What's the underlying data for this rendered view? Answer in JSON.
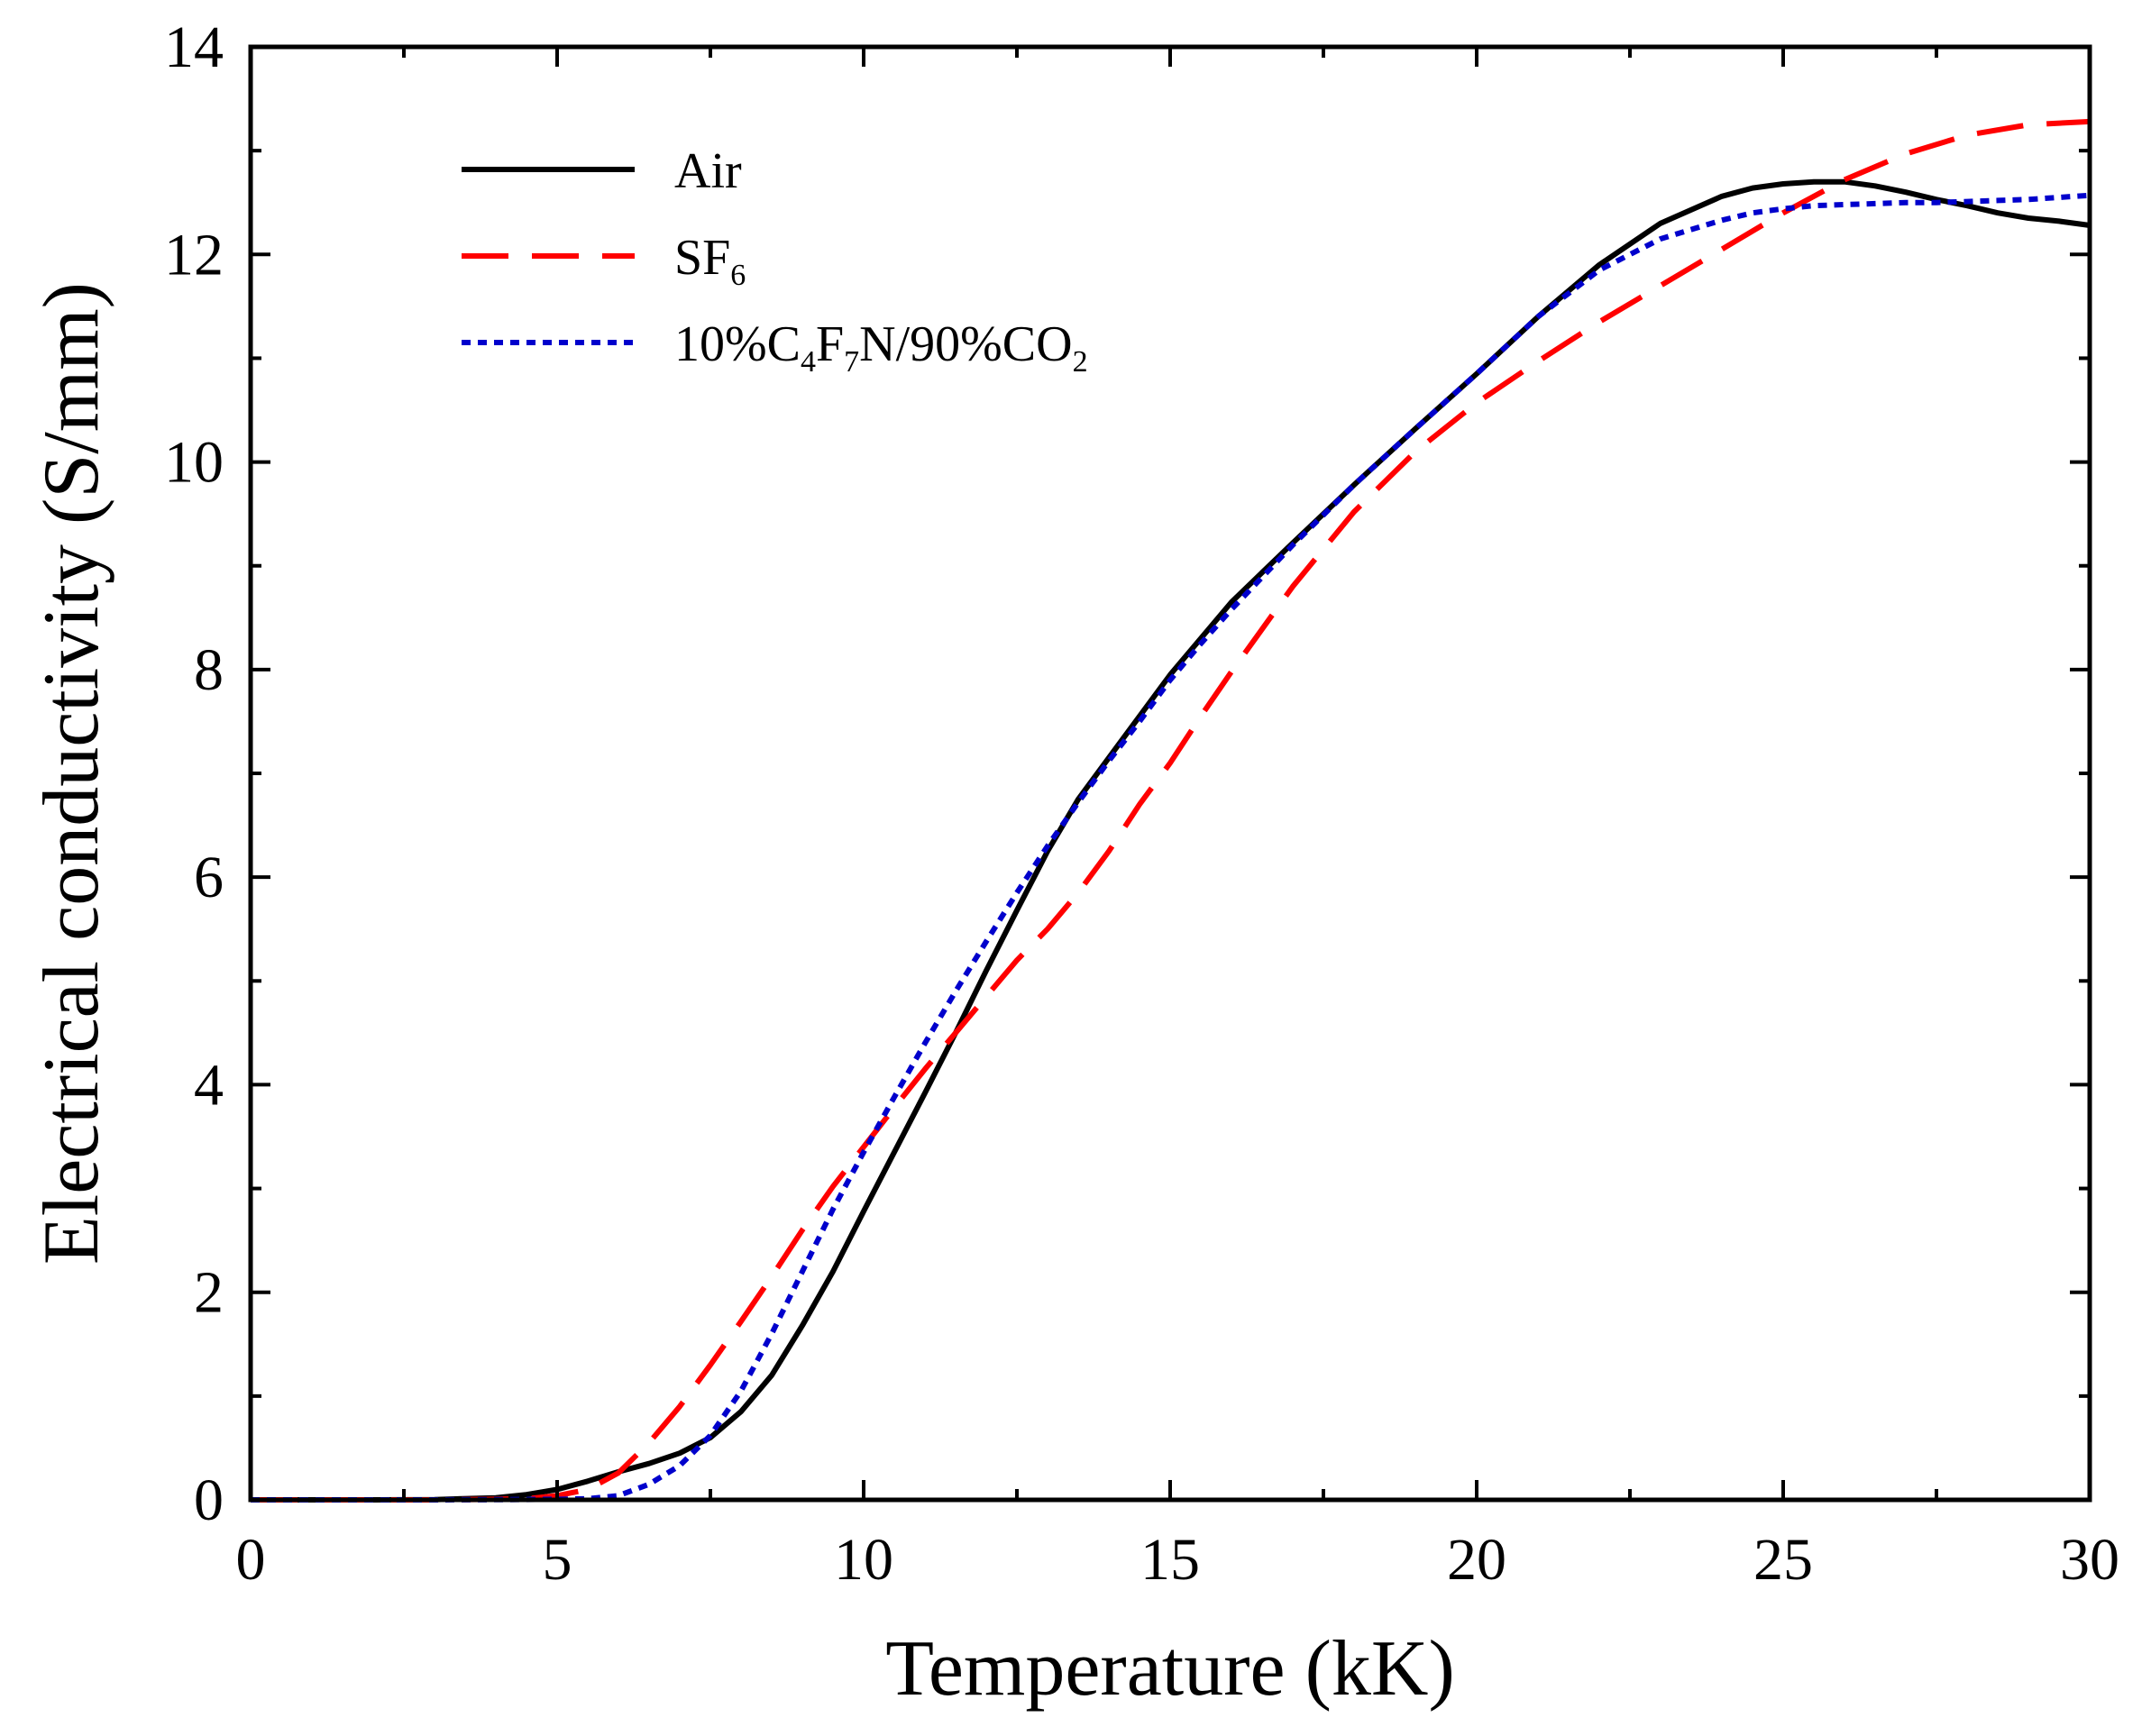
{
  "chart_data": {
    "type": "line",
    "title": "",
    "xlabel": "Temperature (kK)",
    "ylabel": "Electrical conductivity (S/mm)",
    "xlim": [
      0,
      30
    ],
    "ylim": [
      0,
      14
    ],
    "x_ticks": [
      0,
      5,
      10,
      15,
      20,
      25,
      30
    ],
    "x_tick_labels": [
      "0",
      "5",
      "10",
      "15",
      "20",
      "25",
      "30"
    ],
    "y_ticks": [
      0,
      2,
      4,
      6,
      8,
      10,
      12,
      14
    ],
    "y_tick_labels": [
      "0",
      "2",
      "4",
      "6",
      "8",
      "10",
      "12",
      "14"
    ],
    "x_minor_step": 2.5,
    "y_minor_step": 1,
    "grid": false,
    "legend_position": "top-left",
    "series": [
      {
        "name": "Air",
        "legend_parts": [
          [
            "Air",
            false
          ]
        ],
        "color": "#000000",
        "style": "solid",
        "x": [
          0,
          2,
          3,
          4,
          4.5,
          5,
          5.5,
          6,
          6.5,
          7,
          7.5,
          8,
          8.5,
          9,
          9.5,
          10,
          10.5,
          11,
          11.5,
          12,
          12.5,
          13,
          13.5,
          14,
          14.5,
          15,
          15.5,
          16,
          17,
          18,
          19,
          20,
          21,
          22,
          23,
          24,
          24.5,
          25,
          25.5,
          26,
          26.5,
          27,
          27.5,
          28,
          28.5,
          29,
          29.5,
          30
        ],
        "y": [
          0,
          0,
          0.003,
          0.02,
          0.05,
          0.1,
          0.18,
          0.27,
          0.35,
          0.45,
          0.6,
          0.85,
          1.2,
          1.68,
          2.2,
          2.78,
          3.35,
          3.92,
          4.5,
          5.1,
          5.68,
          6.25,
          6.75,
          7.15,
          7.55,
          7.95,
          8.3,
          8.65,
          9.22,
          9.78,
          10.32,
          10.85,
          11.4,
          11.9,
          12.3,
          12.56,
          12.64,
          12.68,
          12.7,
          12.7,
          12.66,
          12.6,
          12.53,
          12.47,
          12.4,
          12.35,
          12.32,
          12.28
        ]
      },
      {
        "name": "SF6",
        "legend_parts": [
          [
            "SF",
            false
          ],
          [
            "6",
            true
          ]
        ],
        "color": "#ff0000",
        "style": "dashed",
        "x": [
          0,
          2,
          3,
          4,
          4.5,
          5,
          5.5,
          6,
          6.5,
          7,
          7.5,
          8,
          8.5,
          9,
          9.5,
          10,
          10.5,
          11,
          11.5,
          12,
          12.5,
          13,
          13.5,
          14,
          14.5,
          15,
          15.5,
          16,
          17,
          18,
          19,
          20,
          21,
          22,
          23,
          24,
          25,
          26,
          27,
          28,
          29,
          30
        ],
        "y": [
          0,
          0,
          0,
          0.005,
          0.01,
          0.04,
          0.1,
          0.26,
          0.55,
          0.9,
          1.3,
          1.72,
          2.15,
          2.6,
          3.02,
          3.4,
          3.78,
          4.15,
          4.5,
          4.85,
          5.2,
          5.5,
          5.85,
          6.25,
          6.7,
          7.1,
          7.55,
          7.98,
          8.8,
          9.52,
          10.1,
          10.57,
          10.97,
          11.35,
          11.7,
          12.05,
          12.4,
          12.72,
          12.97,
          13.15,
          13.25,
          13.28
        ]
      },
      {
        "name": "10%C4F7N/90%CO2",
        "legend_parts": [
          [
            "10%C",
            false
          ],
          [
            "4",
            true
          ],
          [
            "F",
            false
          ],
          [
            "7",
            true
          ],
          [
            "N/90%CO",
            false
          ],
          [
            "2",
            true
          ]
        ],
        "color": "#0000cc",
        "style": "dotted",
        "x": [
          0,
          3,
          4,
          5,
          5.5,
          6,
          6.5,
          7,
          7.5,
          8,
          8.5,
          9,
          9.5,
          10,
          10.5,
          11,
          11.5,
          12,
          12.5,
          13,
          13.5,
          14,
          14.5,
          15,
          15.5,
          16,
          17,
          18,
          19,
          20,
          21,
          22,
          23,
          24,
          24.5,
          25,
          25.5,
          26,
          26.5,
          27,
          27.5,
          28,
          28.5,
          29,
          29.5,
          30
        ],
        "y": [
          0,
          0,
          0.002,
          0.005,
          0.01,
          0.04,
          0.15,
          0.33,
          0.62,
          1.05,
          1.6,
          2.2,
          2.8,
          3.35,
          3.88,
          4.4,
          4.9,
          5.38,
          5.85,
          6.3,
          6.72,
          7.12,
          7.5,
          7.9,
          8.25,
          8.58,
          9.2,
          9.78,
          10.32,
          10.85,
          11.4,
          11.85,
          12.15,
          12.33,
          12.4,
          12.44,
          12.47,
          12.48,
          12.49,
          12.5,
          12.5,
          12.51,
          12.52,
          12.53,
          12.55,
          12.57
        ]
      }
    ]
  }
}
